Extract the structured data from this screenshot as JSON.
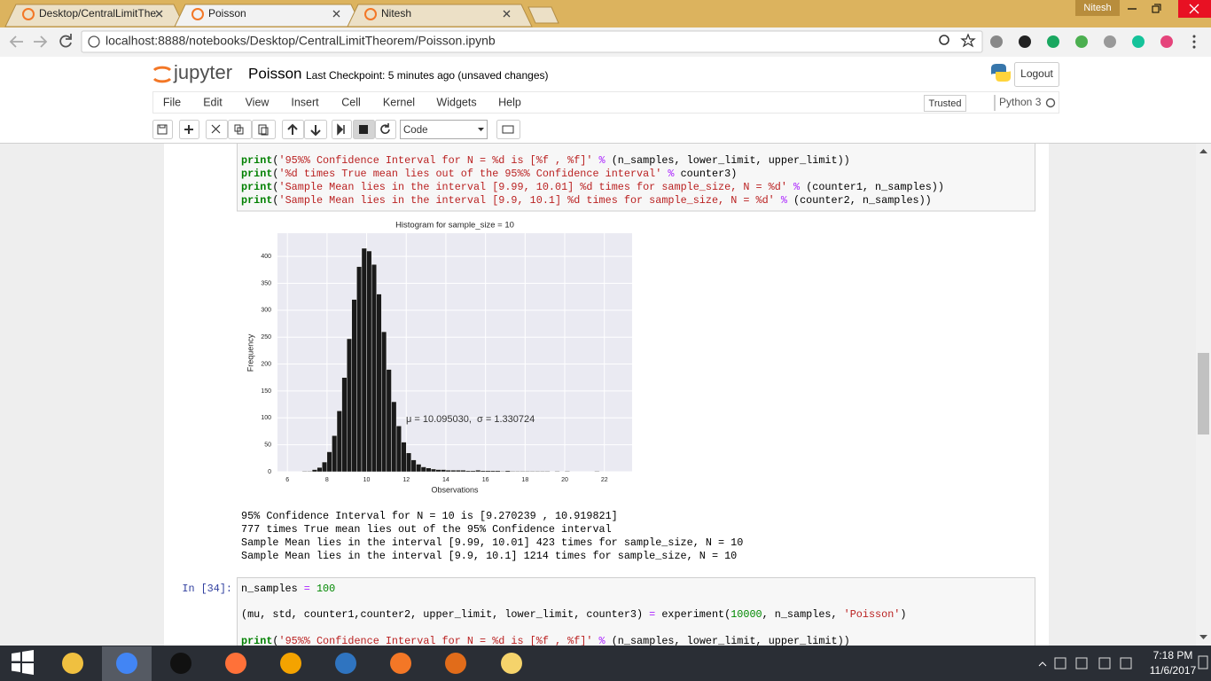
{
  "browser": {
    "tabs": [
      "Desktop/CentralLimitThe",
      "Poisson",
      "Nitesh"
    ],
    "profile": "Nitesh",
    "url": "localhost:8888/notebooks/Desktop/CentralLimitTheorem/Poisson.ipynb"
  },
  "header": {
    "logo": "jupyter",
    "notebook_name": "Poisson",
    "checkpoint": "Last Checkpoint: 5 minutes ago (unsaved changes)",
    "logout": "Logout"
  },
  "menu": {
    "items": [
      "File",
      "Edit",
      "View",
      "Insert",
      "Cell",
      "Kernel",
      "Widgets",
      "Help"
    ],
    "trusted": "Trusted",
    "kernel": "Python 3"
  },
  "toolbar": {
    "cell_type": "Code"
  },
  "cells": [
    {
      "code": [
        [
          "print",
          "(",
          "'95%% Confidence Interval for N = %d is [%f , %f]'",
          " %",
          " (n_samples, lower_limit, upper_limit))"
        ],
        [
          "print",
          "(",
          "'%d times True mean lies out of the 95%% Confidence interval'",
          " %",
          " counter3)"
        ],
        [
          "print",
          "(",
          "'Sample Mean lies in the interval [9.99, 10.01] %d times for sample_size, N = %d'",
          " %",
          " (counter1, n_samples))"
        ],
        [
          "print",
          "(",
          "'Sample Mean lies in the interval [9.9, 10.1] %d times for sample_size, N = %d'",
          " %",
          " (counter2, n_samples))"
        ]
      ],
      "output_lines": [
        "95% Confidence Interval for N = 10 is [9.270239 , 10.919821]",
        "777 times True mean lies out of the 95% Confidence interval",
        "Sample Mean lies in the interval [9.99, 10.01] 423 times for sample_size, N = 10",
        "Sample Mean lies in the interval [9.9, 10.1] 1214 times for sample_size, N = 10"
      ]
    },
    {
      "prompt": "In [34]:",
      "code": [
        [
          "n_samples",
          " =",
          " 100"
        ],
        [
          "(mu, std, counter1,counter2, upper_limit, lower_limit, counter3)",
          " =",
          " experiment(",
          "10000",
          ", n_samples, ",
          "'Poisson'",
          ")"
        ],
        [
          "print",
          "(",
          "'95%% Confidence Interval for N = %d is [%f , %f]'",
          " %",
          " (n_samples, lower_limit, upper_limit))"
        ]
      ]
    }
  ],
  "taskbar": {
    "time": "7:18 PM",
    "date": "11/6/2017"
  },
  "chart_data": {
    "type": "histogram",
    "title": "Histogram for sample_size = 10",
    "x_label": "Observations",
    "y_label": "Frequency",
    "annotation": "μ = 10.095030,  σ = 1.330724",
    "bins": [
      6.5,
      6.75,
      7,
      7.25,
      7.5,
      7.75,
      8,
      8.25,
      8.5,
      8.75,
      9,
      9.25,
      9.5,
      9.75,
      10,
      10.25,
      10.5,
      10.75,
      11,
      11.25,
      11.5,
      11.75,
      12,
      12.25,
      12.5,
      12.75,
      13,
      13.25,
      13.5,
      13.75,
      14,
      14.25,
      14.5,
      14.75,
      15,
      15.25,
      15.5,
      15.75,
      16,
      16.25,
      16.5,
      16.75,
      17,
      17.25,
      17.5,
      17.75,
      18,
      18.25,
      18.5,
      18.75,
      19,
      19.25,
      19.5,
      19.75,
      20,
      20.25,
      20.5,
      20.75,
      21,
      21.25,
      21.5,
      21.75,
      22,
      22.25,
      22.5
    ],
    "counts": [
      0,
      1,
      1,
      4,
      8,
      18,
      37,
      67,
      113,
      175,
      247,
      320,
      381,
      415,
      410,
      385,
      330,
      260,
      190,
      130,
      85,
      55,
      35,
      22,
      14,
      9,
      7,
      5,
      4,
      4,
      3,
      3,
      3,
      3,
      2,
      2,
      3,
      2,
      2,
      2,
      2,
      1,
      2,
      1,
      1,
      1,
      1,
      1,
      1,
      1,
      1,
      0,
      1,
      0,
      1,
      0,
      0,
      0,
      0,
      0,
      1,
      0,
      0,
      0
    ],
    "color": "#1a1a1a",
    "xlim": [
      5.5,
      23.4
    ],
    "ylim": [
      0,
      443
    ],
    "xticks": [
      6,
      8,
      10,
      12,
      14,
      16,
      18,
      20,
      22
    ],
    "yticks": [
      0,
      50,
      100,
      150,
      200,
      250,
      300,
      350,
      400
    ],
    "grid": true
  }
}
